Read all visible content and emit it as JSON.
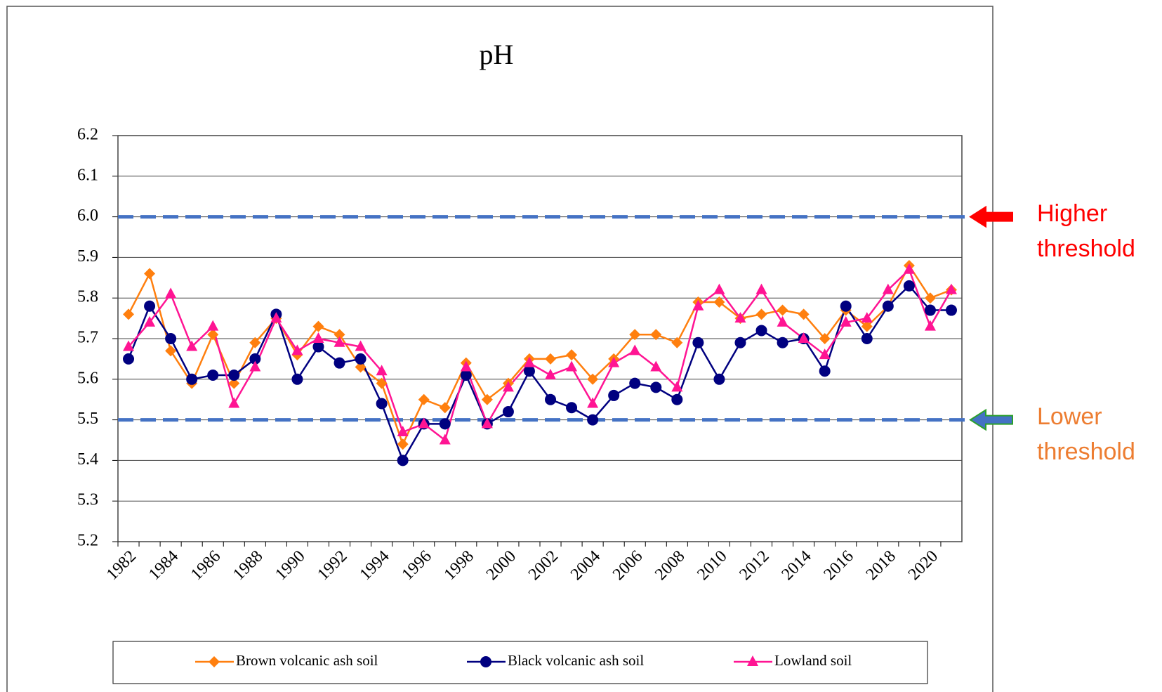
{
  "chart_data": {
    "type": "line",
    "title": "pH",
    "categories": [
      "1982",
      null,
      "1984",
      null,
      "1986",
      null,
      "1988",
      null,
      "1990",
      null,
      "1992",
      null,
      "1994",
      null,
      "1996",
      null,
      "1998",
      null,
      "2000",
      null,
      "2002",
      null,
      "2004",
      null,
      "2006",
      null,
      "2008",
      null,
      "2010",
      null,
      "2012",
      null,
      "2014",
      null,
      "2016",
      null,
      "2018",
      null,
      "2020",
      null
    ],
    "series": [
      {
        "name": "Brown volcanic ash soil",
        "color": "#ff7f0e",
        "marker": "diamond",
        "values": [
          5.76,
          5.86,
          5.67,
          5.59,
          5.71,
          5.59,
          5.69,
          5.75,
          5.66,
          5.73,
          5.71,
          5.63,
          5.59,
          5.44,
          5.55,
          5.53,
          5.64,
          5.55,
          5.59,
          5.65,
          5.65,
          5.66,
          5.6,
          5.65,
          5.71,
          5.71,
          5.69,
          5.79,
          5.79,
          5.75,
          5.76,
          5.77,
          5.76,
          5.7,
          5.77,
          5.73,
          5.78,
          5.88,
          5.8,
          5.82
        ]
      },
      {
        "name": "Black volcanic ash soil",
        "color": "#000080",
        "marker": "circle",
        "values": [
          5.65,
          5.78,
          5.7,
          5.6,
          5.61,
          5.61,
          5.65,
          5.76,
          5.6,
          5.68,
          5.64,
          5.65,
          5.54,
          5.4,
          5.49,
          5.49,
          5.61,
          5.49,
          5.52,
          5.62,
          5.55,
          5.53,
          5.5,
          5.56,
          5.59,
          5.58,
          5.55,
          5.69,
          5.6,
          5.69,
          5.72,
          5.69,
          5.7,
          5.62,
          5.78,
          5.7,
          5.78,
          5.83,
          5.77,
          5.77
        ]
      },
      {
        "name": "Lowland soil",
        "color": "#ff1493",
        "marker": "triangle",
        "values": [
          5.68,
          5.74,
          5.81,
          5.68,
          5.73,
          5.54,
          5.63,
          5.75,
          5.67,
          5.7,
          5.69,
          5.68,
          5.62,
          5.47,
          5.49,
          5.45,
          5.63,
          5.49,
          5.58,
          5.64,
          5.61,
          5.63,
          5.54,
          5.64,
          5.67,
          5.63,
          5.58,
          5.78,
          5.82,
          5.75,
          5.82,
          5.74,
          5.7,
          5.66,
          5.74,
          5.75,
          5.82,
          5.87,
          5.73,
          5.82
        ]
      }
    ],
    "ylim": [
      5.2,
      6.2
    ],
    "yticks": [
      5.2,
      5.3,
      5.4,
      5.5,
      5.6,
      5.7,
      5.8,
      5.9,
      {
        "value": 6,
        "label": "6.0"
      },
      6.1,
      6.2
    ],
    "grid": true,
    "legend": "bottom",
    "thresholds": [
      {
        "value": 6,
        "label": "Higher threshold",
        "color": "#ff0000",
        "line_color": "#4472c4",
        "arrow_color": "#ff0000"
      },
      {
        "value": 5.5,
        "label": "Lower threshold",
        "color": "#ed7d31",
        "line_color": "#4472c4",
        "arrow_color": "#4472c4"
      }
    ]
  }
}
